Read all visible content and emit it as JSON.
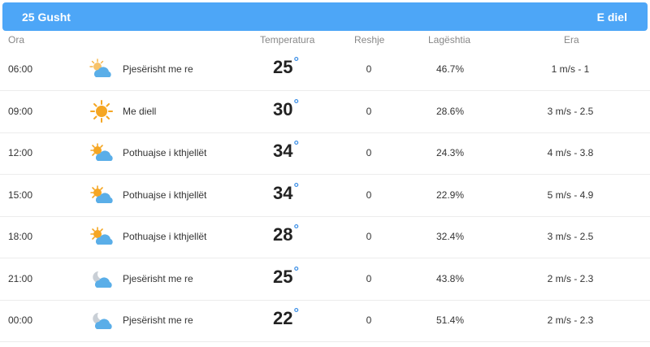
{
  "header": {
    "date": "25 Gusht",
    "day": "E diel"
  },
  "columns": {
    "time": "Ora",
    "temperature": "Temperatura",
    "precipitation": "Reshje",
    "humidity": "Lagështia",
    "wind": "Era"
  },
  "colors": {
    "header_bg": "#4da6f7",
    "degree": "#3a8ee6",
    "sun": "#f5a623",
    "cloud": "#5aaee8"
  },
  "rows": [
    {
      "time": "06:00",
      "icon": "partly-cloudy-sun-icon",
      "desc": "Pjesërisht me re",
      "temp": "25",
      "precip": "0",
      "humidity": "46.7%",
      "wind": "1 m/s - 1"
    },
    {
      "time": "09:00",
      "icon": "sun-icon",
      "desc": "Me diell",
      "temp": "30",
      "precip": "0",
      "humidity": "28.6%",
      "wind": "3 m/s - 2.5"
    },
    {
      "time": "12:00",
      "icon": "sun-cloud-icon",
      "desc": "Pothuajse i kthjellët",
      "temp": "34",
      "precip": "0",
      "humidity": "24.3%",
      "wind": "4 m/s - 3.8"
    },
    {
      "time": "15:00",
      "icon": "sun-cloud-icon",
      "desc": "Pothuajse i kthjellët",
      "temp": "34",
      "precip": "0",
      "humidity": "22.9%",
      "wind": "5 m/s - 4.9"
    },
    {
      "time": "18:00",
      "icon": "sun-cloud-icon",
      "desc": "Pothuajse i kthjellët",
      "temp": "28",
      "precip": "0",
      "humidity": "32.4%",
      "wind": "3 m/s - 2.5"
    },
    {
      "time": "21:00",
      "icon": "moon-cloud-icon",
      "desc": "Pjesërisht me re",
      "temp": "25",
      "precip": "0",
      "humidity": "43.8%",
      "wind": "2 m/s - 2.3"
    },
    {
      "time": "00:00",
      "icon": "moon-cloud-icon",
      "desc": "Pjesërisht me re",
      "temp": "22",
      "precip": "0",
      "humidity": "51.4%",
      "wind": "2 m/s - 2.3"
    }
  ]
}
